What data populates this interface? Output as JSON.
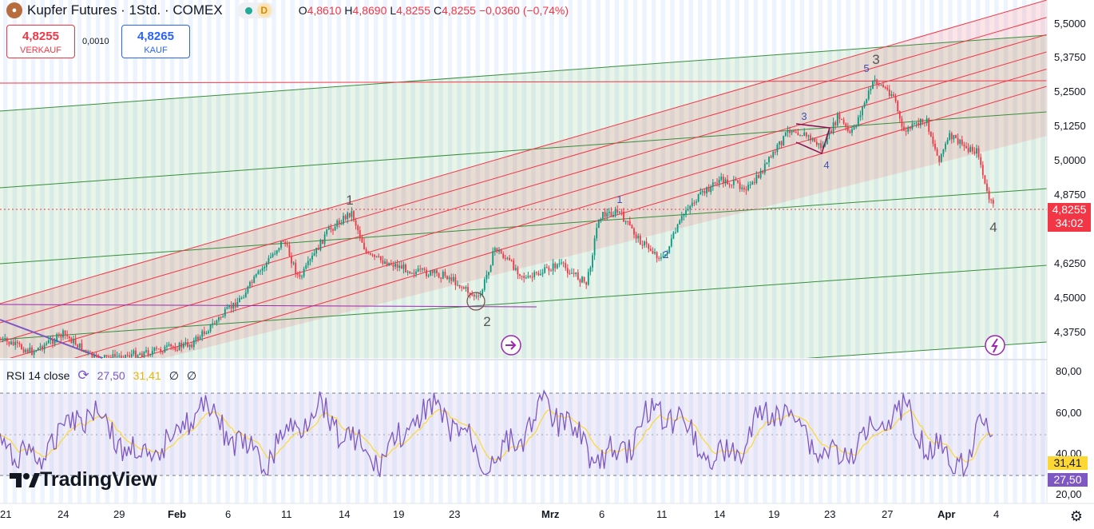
{
  "header": {
    "title": "Kupfer Futures · 1Std. · COMEX",
    "badge": "D",
    "ohlc": [
      {
        "k": "O",
        "v": "4,8610"
      },
      {
        "k": "H",
        "v": "4,8690"
      },
      {
        "k": "L",
        "v": "4,8255"
      },
      {
        "k": "C",
        "v": "4,8255"
      },
      {
        "k": "",
        "v": "−0,0360 (−0,74%)"
      }
    ]
  },
  "trade": {
    "sell_price": "4,8255",
    "sell_label": "VERKAUF",
    "spread": "0,0010",
    "buy_price": "4,8265",
    "buy_label": "KAUF"
  },
  "price_axis": [
    "5,5000",
    "5,3750",
    "5,2500",
    "5,1250",
    "5,0000",
    "4,8750",
    "4,6250",
    "4,5000",
    "4,3750"
  ],
  "current_price": {
    "value": "4,8255",
    "countdown": "34:02"
  },
  "rsi": {
    "label": "RSI 14 close",
    "value": "27,50",
    "ma_value": "31,41",
    "extra1": "∅",
    "extra2": "∅",
    "axis": [
      "80,00",
      "60,00",
      "40,00",
      "20,00"
    ]
  },
  "x_axis": [
    "21",
    "24",
    "29",
    "Feb",
    "6",
    "11",
    "14",
    "19",
    "23",
    "Mrz",
    "6",
    "11",
    "14",
    "19",
    "23",
    "27",
    "Apr",
    "4"
  ],
  "wave_labels": {
    "big": [
      "1",
      "2",
      "3",
      "4"
    ],
    "small": [
      "1",
      "2",
      "3",
      "4",
      "5"
    ]
  },
  "brand": "TradingView",
  "colors": {
    "up": "#089981",
    "down": "#f23645",
    "rsi": "#7e57c2",
    "rsi_ma": "#fdd835",
    "channel_red": "#f23645",
    "channel_green": "#388e3c"
  }
}
